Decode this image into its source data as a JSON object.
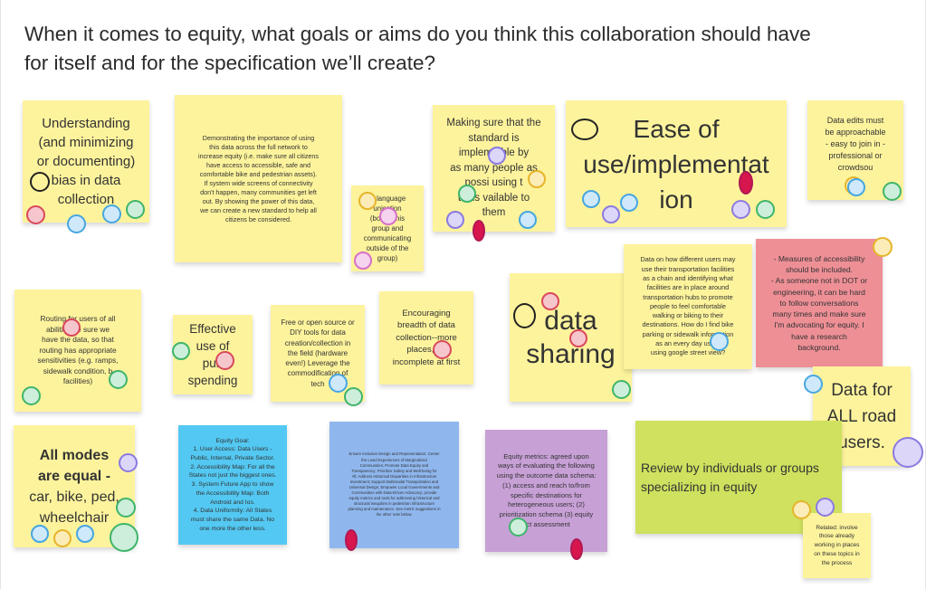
{
  "prompt": "When it comes to equity, what goals or aims do you think this collaboration should have\nfor itself and for the specification we’ll create?",
  "notes": {
    "n1": "Understanding\n(and minimizing\nor documenting)\nbias in data\ncollection",
    "n2": "Demonstrating the importance of using\nthis data across the full network to\nincrease equity (i.e. make sure all citizens\nhave access to accessible, safe and\ncomfortable bike and pedestrian assets).\nIf system wide screens of connectivity\ndon't happen, many communities get left\nout. By showing the power of this data,\nwe can create a new standard to help all\ncitizens be considered.",
    "n3": "in language\nunication\n(bo      hin this\ngroup and\ncommunicating\noutside of the\ngroup)",
    "n4": "Making sure that the\nstandard is\nimplem    able by\nas many people as\npossi    using t\ntools   vailable to\nthem",
    "n5": "Ease of\nuse/implementat\nion",
    "n6": "Data edits must\nbe approachable\n- easy to join in -\nprofessional or\ncrowdsou",
    "n7": "Routing for users of all\nabilities    ke sure we\nhave the data, so that\nrouting has appropriate\nsensitivities (e.g. ramps,\nsidewalk condition, b\nfacilities)",
    "n8": "Effective\nuse of\npub\nspending",
    "n9": "Free or open source or\nDIY tools for data\ncreation/collection in\nthe field (hardware\neven!) Leverage the\ncommodification of\ntech",
    "n10": "Encouraging\nbreadth of data\ncollection--more\nplaces, e    f\nincomplete at first",
    "n11": "data\nsharing",
    "n12": "Data on how different users may\nuse their transportation facilities\nas a chain and identifying what\nfacilities are in place around\ntransportation hubs to promote\npeople to feel comfortable\nwalking or biking to their\ndestinations. How do I find bike\nparking or sidewalk information\nas an every day user       t\nusing google street view?",
    "n13": "- Measures of accessibility\nshould be included.\n- As someone not in DOT or\nengineering, it can be hard\nto follow conversations\nmany times and make sure\nI'm advocating for equity. I\nhave a research\nbackground.",
    "n14": "Data for\nALL road\nusers.",
    "n15a": "All modes\nare equal -",
    "n15b": "car, bike, ped,\nwheelchair",
    "n16": "Equity Goal:\n1. User Access: Data Users -\nPublic, Internal, Private Sector.\n2. Accessibility Map: For all the\nStates not just the biggest ones.\n3. System Future App to show\nthe Accessibility Map: Both\nAndroid and Ios.\n4. Data Uniformity: All States\nmust share the same Data. No\none more the other less.",
    "n17": "Ensure Inclusive Design and Representation; Center\nthe Lived Experiences of Marginalized\nCommunities; Promote Data Equity and\nTransparency; Prioritize Safety and Well-being for\nAll; Address Historical Disparities in Infrastructure\nInvestment; Support Multimodal Transportation and\nUniversal Design; Empower Local Governments and\nCommunities with Data-Driven Advocacy; provide\nequity metrics and tools for addressing historical and\nstructural inequities in pedestrian infrastructure\nplanning and maintenance. See metric suggestions in\nthe other note below.",
    "n18": "Equity metrics: agreed upon\nways of evaluating the following\nusing the outcome data schema:\n(1) access and reach to/from\nspecific destinations for\nheterogeneous users; (2)\nprioritization schema (3) equity\nact assessment",
    "n19": "Review by individuals or groups\nspecializing in equity",
    "n20": "Related: involve\nthose already\nworking in places\non these topics in\nthe process"
  },
  "colors": {
    "yellow": "#fdf39c",
    "pink": "#ee8f96",
    "blue": "#53c8f2",
    "lightblue": "#8fb7ee",
    "purple": "#c7a0d6",
    "lime": "#cfe15e"
  }
}
